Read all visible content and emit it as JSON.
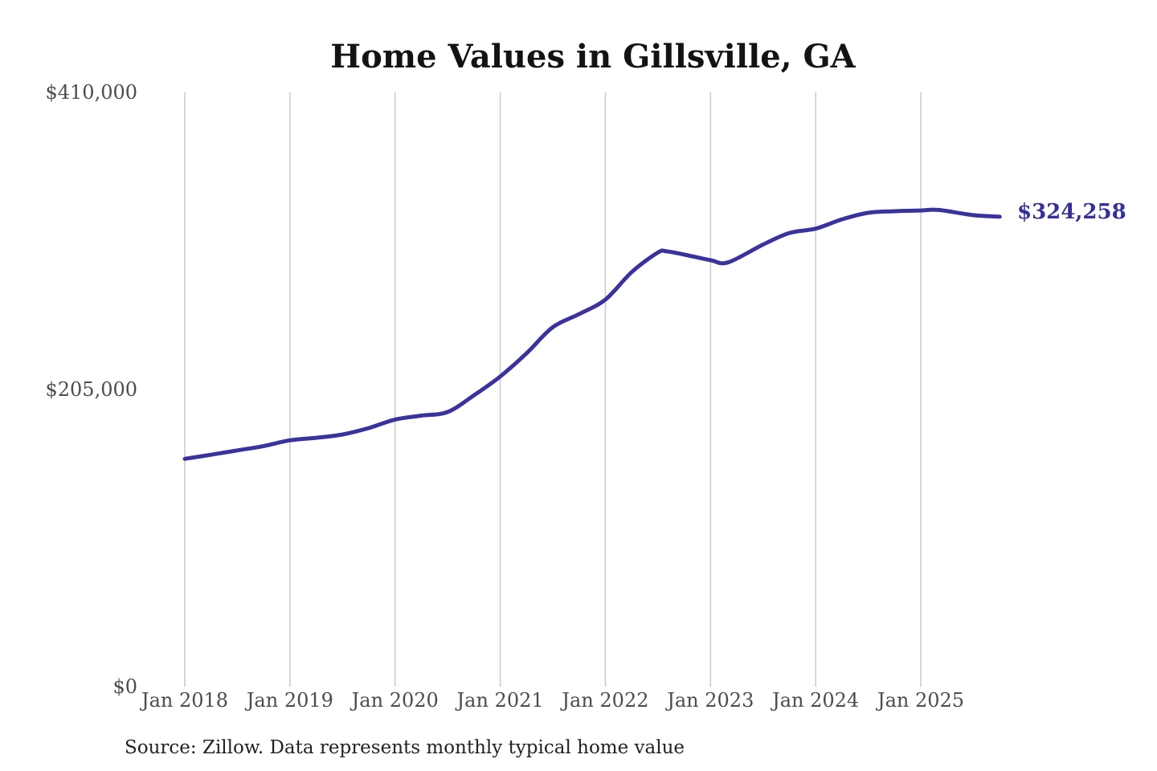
{
  "chart": {
    "title": "Home Values in Gillsville, GA",
    "latest_value_label": "$324,258",
    "source": "Source: Zillow. Data represents monthly typical home value",
    "colors": {
      "line": "#3a329e",
      "latest_label_text": "#35309a",
      "gridline": "#c9c9c9",
      "axis_text": "#4c4c4c",
      "title_text": "#131313",
      "source_text": "#222222",
      "background": "#ffffff"
    }
  },
  "chart_data": {
    "type": "line",
    "title": "Home Values in Gillsville, GA",
    "xlabel": "",
    "ylabel": "",
    "x_unit": "months since Jan 2018",
    "x_tick_labels": [
      "Jan 2018",
      "Jan 2019",
      "Jan 2020",
      "Jan 2021",
      "Jan 2022",
      "Jan 2023",
      "Jan 2024",
      "Jan 2025"
    ],
    "y_tick_labels": [
      "$0",
      "$205,000",
      "$410,000"
    ],
    "y_ticks": [
      0,
      205000,
      410000
    ],
    "ylim": [
      0,
      410000
    ],
    "grid": "vertical-yearly-only",
    "legend": "none",
    "annotation": {
      "text": "$324,258",
      "attached_to": "last-point"
    },
    "series": [
      {
        "name": "Monthly typical home value",
        "latest_value": 324258,
        "points": [
          {
            "label": "Jan 2018",
            "m": 0,
            "v": 157200
          },
          {
            "label": "Apr 2018",
            "m": 3,
            "v": 160000
          },
          {
            "label": "Jul 2018",
            "m": 6,
            "v": 163000
          },
          {
            "label": "Oct 2018",
            "m": 9,
            "v": 166000
          },
          {
            "label": "Jan 2019",
            "m": 12,
            "v": 170000
          },
          {
            "label": "Apr 2019",
            "m": 15,
            "v": 171700
          },
          {
            "label": "Jul 2019",
            "m": 18,
            "v": 174000
          },
          {
            "label": "Oct 2019",
            "m": 21,
            "v": 178400
          },
          {
            "label": "Jan 2020",
            "m": 24,
            "v": 184300
          },
          {
            "label": "Apr 2020",
            "m": 27,
            "v": 187000
          },
          {
            "label": "Jul 2020",
            "m": 30,
            "v": 189500
          },
          {
            "label": "Oct 2020",
            "m": 33,
            "v": 201000
          },
          {
            "label": "Jan 2021",
            "m": 36,
            "v": 214000
          },
          {
            "label": "Apr 2021",
            "m": 39,
            "v": 230000
          },
          {
            "label": "Jul 2021",
            "m": 42,
            "v": 248000
          },
          {
            "label": "Oct 2021",
            "m": 45,
            "v": 257000
          },
          {
            "label": "Jan 2022",
            "m": 48,
            "v": 267000
          },
          {
            "label": "Apr 2022",
            "m": 51,
            "v": 286000
          },
          {
            "label": "Jul 2022",
            "m": 54,
            "v": 299500
          },
          {
            "label": "Aug 2022",
            "m": 55,
            "v": 300300
          },
          {
            "label": "Oct 2022",
            "m": 57,
            "v": 298100
          },
          {
            "label": "Jan 2023",
            "m": 60,
            "v": 294200
          },
          {
            "label": "Mar 2023",
            "m": 62,
            "v": 292700
          },
          {
            "label": "Jul 2023",
            "m": 66,
            "v": 305000
          },
          {
            "label": "Oct 2023",
            "m": 69,
            "v": 313000
          },
          {
            "label": "Jan 2024",
            "m": 72,
            "v": 316000
          },
          {
            "label": "Apr 2024",
            "m": 75,
            "v": 322400
          },
          {
            "label": "Jul 2024",
            "m": 78,
            "v": 326900
          },
          {
            "label": "Oct 2024",
            "m": 81,
            "v": 328000
          },
          {
            "label": "Jan 2025",
            "m": 84,
            "v": 328500
          },
          {
            "label": "Mar 2025",
            "m": 86,
            "v": 328900
          },
          {
            "label": "Jul 2025",
            "m": 90,
            "v": 325300
          },
          {
            "label": "Oct 2025",
            "m": 93,
            "v": 324258
          }
        ]
      }
    ]
  }
}
